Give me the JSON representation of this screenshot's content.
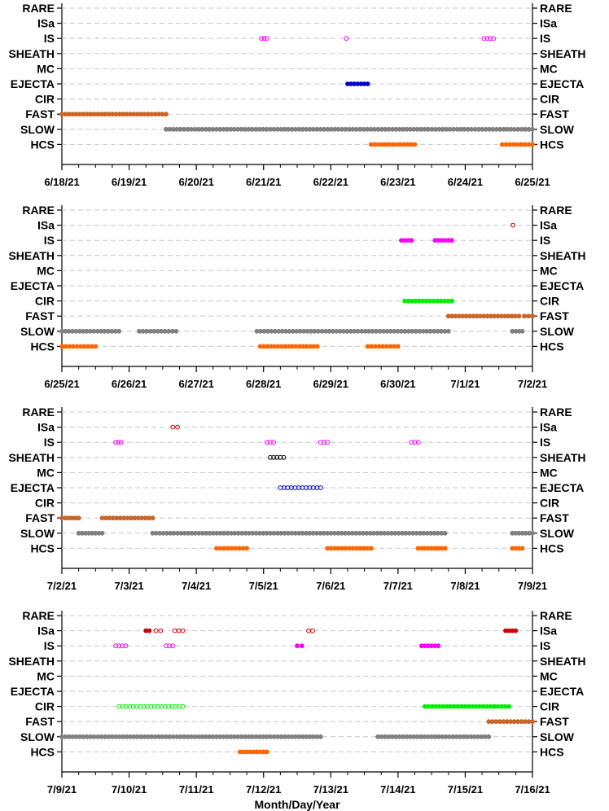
{
  "chart_data": [
    {
      "type": "scatter",
      "categories": [
        "RARE",
        "ISa",
        "IS",
        "SHEATH",
        "MC",
        "EJECTA",
        "CIR",
        "FAST",
        "SLOW",
        "HCS"
      ],
      "x_tick_labels": [
        "6/18/21",
        "6/19/21",
        "6/20/21",
        "6/21/21",
        "6/22/21",
        "6/23/21",
        "6/24/21",
        "6/25/21"
      ],
      "x_range_days": [
        0,
        7
      ],
      "xlabel": "",
      "grid": "dashed horizontal",
      "series": [
        {
          "category": "IS",
          "color": "#ff00ff",
          "filled": false,
          "ranges": [
            [
              2.97,
              3.05
            ],
            [
              4.22,
              4.24
            ],
            [
              6.28,
              6.42
            ]
          ]
        },
        {
          "category": "EJECTA",
          "color": "#0000cc",
          "filled": true,
          "ranges": [
            [
              4.25,
              4.55
            ]
          ]
        },
        {
          "category": "FAST",
          "color": "#c86428",
          "filled": true,
          "ranges": [
            [
              0.0,
              1.55
            ]
          ]
        },
        {
          "category": "SLOW",
          "color": "#808080",
          "filled": true,
          "ranges": [
            [
              1.55,
              7.0
            ]
          ]
        },
        {
          "category": "HCS",
          "color": "#ff6600",
          "filled": true,
          "ranges": [
            [
              4.6,
              5.25
            ],
            [
              6.55,
              7.0
            ]
          ]
        }
      ]
    },
    {
      "type": "scatter",
      "categories": [
        "RARE",
        "ISa",
        "IS",
        "SHEATH",
        "MC",
        "EJECTA",
        "CIR",
        "FAST",
        "SLOW",
        "HCS"
      ],
      "x_tick_labels": [
        "6/25/21",
        "6/26/21",
        "6/27/21",
        "6/28/21",
        "6/29/21",
        "6/30/21",
        "7/1/21",
        "7/2/21"
      ],
      "x_range_days": [
        0,
        7
      ],
      "xlabel": "",
      "grid": "dashed horizontal",
      "series": [
        {
          "category": "ISa",
          "color": "#cc0000",
          "filled": false,
          "ranges": [
            [
              6.7,
              6.72
            ]
          ]
        },
        {
          "category": "IS",
          "color": "#ff00ff",
          "filled": true,
          "ranges": [
            [
              5.05,
              5.2
            ],
            [
              5.55,
              5.8
            ]
          ]
        },
        {
          "category": "CIR",
          "color": "#00ee00",
          "filled": true,
          "ranges": [
            [
              5.1,
              5.8
            ]
          ]
        },
        {
          "category": "FAST",
          "color": "#c86428",
          "filled": true,
          "ranges": [
            [
              5.75,
              6.8
            ],
            [
              6.88,
              7.0
            ]
          ]
        },
        {
          "category": "SLOW",
          "color": "#808080",
          "filled": true,
          "ranges": [
            [
              0.0,
              0.85
            ],
            [
              1.15,
              1.7
            ],
            [
              2.9,
              5.75
            ],
            [
              6.7,
              6.85
            ]
          ]
        },
        {
          "category": "HCS",
          "color": "#ff6600",
          "filled": true,
          "ranges": [
            [
              0.0,
              0.5
            ],
            [
              2.95,
              3.8
            ],
            [
              4.55,
              5.0
            ]
          ]
        }
      ]
    },
    {
      "type": "scatter",
      "categories": [
        "RARE",
        "ISa",
        "IS",
        "SHEATH",
        "MC",
        "EJECTA",
        "CIR",
        "FAST",
        "SLOW",
        "HCS"
      ],
      "x_tick_labels": [
        "7/2/21",
        "7/3/21",
        "7/4/21",
        "7/5/21",
        "7/6/21",
        "7/7/21",
        "7/8/21",
        "7/9/21"
      ],
      "x_range_days": [
        0,
        7
      ],
      "xlabel": "",
      "grid": "dashed horizontal",
      "series": [
        {
          "category": "ISa",
          "color": "#cc0000",
          "filled": false,
          "ranges": [
            [
              1.65,
              1.72
            ]
          ]
        },
        {
          "category": "IS",
          "color": "#ff00ff",
          "filled": false,
          "ranges": [
            [
              0.8,
              0.88
            ],
            [
              3.05,
              3.15
            ],
            [
              3.85,
              3.95
            ],
            [
              5.2,
              5.3
            ]
          ]
        },
        {
          "category": "SHEATH",
          "color": "#000000",
          "filled": false,
          "ranges": [
            [
              3.1,
              3.3
            ]
          ]
        },
        {
          "category": "EJECTA",
          "color": "#0000cc",
          "filled": false,
          "ranges": [
            [
              3.25,
              3.85
            ]
          ]
        },
        {
          "category": "FAST",
          "color": "#c86428",
          "filled": true,
          "ranges": [
            [
              0.0,
              0.25
            ],
            [
              0.6,
              1.35
            ]
          ]
        },
        {
          "category": "SLOW",
          "color": "#808080",
          "filled": true,
          "ranges": [
            [
              0.25,
              0.6
            ],
            [
              1.35,
              5.7
            ],
            [
              6.7,
              7.0
            ]
          ]
        },
        {
          "category": "HCS",
          "color": "#ff6600",
          "filled": true,
          "ranges": [
            [
              2.3,
              2.75
            ],
            [
              3.95,
              4.6
            ],
            [
              5.3,
              5.7
            ],
            [
              6.7,
              6.85
            ]
          ]
        }
      ]
    },
    {
      "type": "scatter",
      "categories": [
        "RARE",
        "ISa",
        "IS",
        "SHEATH",
        "MC",
        "EJECTA",
        "CIR",
        "FAST",
        "SLOW",
        "HCS"
      ],
      "x_tick_labels": [
        "7/9/21",
        "7/10/21",
        "7/11/21",
        "7/12/21",
        "7/13/21",
        "7/14/21",
        "7/15/21",
        "7/16/21"
      ],
      "x_range_days": [
        0,
        7
      ],
      "xlabel": "Month/Day/Year",
      "grid": "dashed horizontal",
      "series": [
        {
          "category": "ISa",
          "color": "#cc0000",
          "filled": true,
          "ranges": [
            [
              1.25,
              1.3
            ],
            [
              6.6,
              6.75
            ]
          ]
        },
        {
          "category": "ISa",
          "color": "#cc0000",
          "filled": false,
          "ranges": [
            [
              1.4,
              1.47
            ],
            [
              1.68,
              1.8
            ],
            [
              3.67,
              3.73
            ]
          ]
        },
        {
          "category": "IS",
          "color": "#ff00ff",
          "filled": false,
          "ranges": [
            [
              0.8,
              0.95
            ],
            [
              1.55,
              1.65
            ]
          ]
        },
        {
          "category": "IS",
          "color": "#ff00ff",
          "filled": true,
          "ranges": [
            [
              3.5,
              3.57
            ],
            [
              5.35,
              5.6
            ]
          ]
        },
        {
          "category": "CIR",
          "color": "#00ee00",
          "filled": false,
          "ranges": [
            [
              0.85,
              1.8
            ]
          ]
        },
        {
          "category": "CIR",
          "color": "#00ee00",
          "filled": true,
          "ranges": [
            [
              5.4,
              6.65
            ]
          ]
        },
        {
          "category": "FAST",
          "color": "#c86428",
          "filled": true,
          "ranges": [
            [
              6.35,
              7.0
            ]
          ]
        },
        {
          "category": "SLOW",
          "color": "#808080",
          "filled": true,
          "ranges": [
            [
              0.0,
              3.85
            ],
            [
              4.7,
              6.35
            ]
          ]
        },
        {
          "category": "HCS",
          "color": "#ff6600",
          "filled": true,
          "ranges": [
            [
              2.65,
              3.05
            ]
          ]
        }
      ]
    }
  ]
}
